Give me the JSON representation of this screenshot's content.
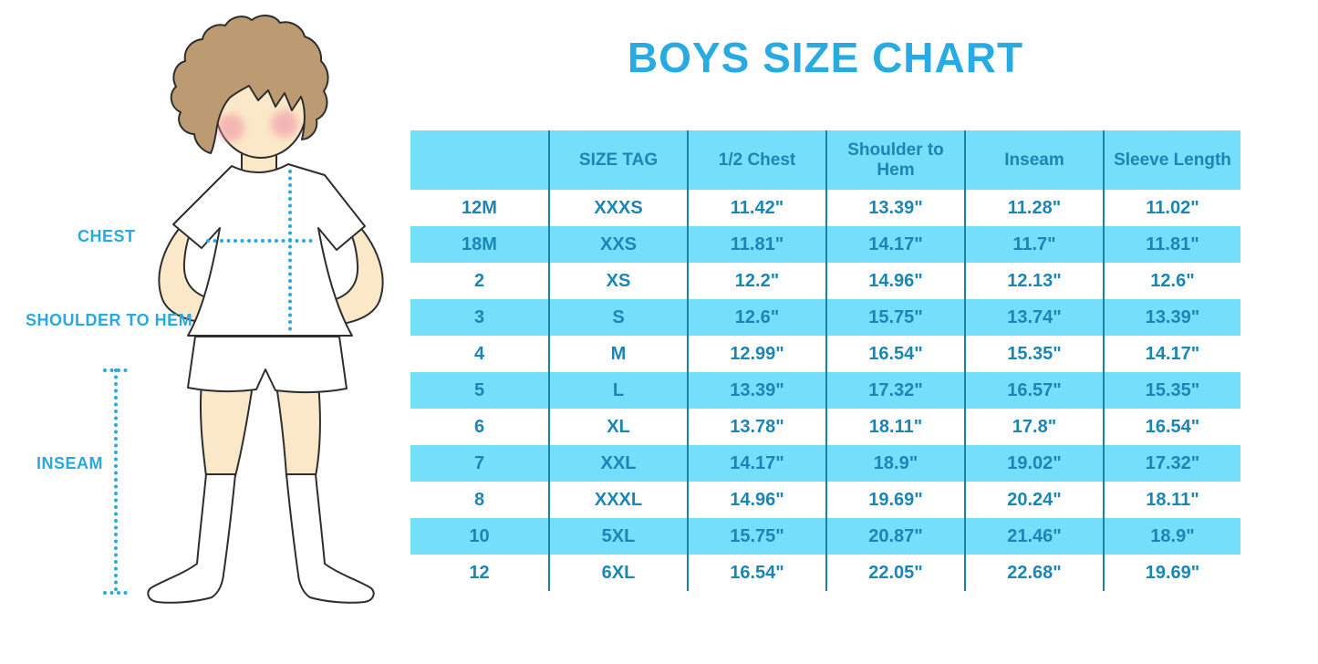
{
  "page": {
    "title": "BOYS SIZE CHART"
  },
  "figure": {
    "labels": {
      "chest": "CHEST",
      "shoulder_to_hem": "SHOULDER TO HEM",
      "inseam": "INSEAM"
    }
  },
  "colors": {
    "title_blue": "#29ABE2",
    "label_blue": "#29A9E0",
    "table_fill": "#74DFFB",
    "table_text": "#1B86B5",
    "table_border": "#1C7FA8",
    "skin": "#FBE8C8",
    "hair": "#BC9B72",
    "cheek": "#EE8FA6",
    "outline": "#2E2E2E"
  },
  "chart_data": {
    "type": "table",
    "title": "BOYS SIZE CHART",
    "columns": [
      "",
      "SIZE TAG",
      "1/2 Chest",
      "Shoulder to Hem",
      "Inseam",
      "Sleeve Length"
    ],
    "rows": [
      [
        "12M",
        "XXXS",
        "11.42\"",
        "13.39\"",
        "11.28\"",
        "11.02\""
      ],
      [
        "18M",
        "XXS",
        "11.81\"",
        "14.17\"",
        "11.7\"",
        "11.81\""
      ],
      [
        "2",
        "XS",
        "12.2\"",
        "14.96\"",
        "12.13\"",
        "12.6\""
      ],
      [
        "3",
        "S",
        "12.6\"",
        "15.75\"",
        "13.74\"",
        "13.39\""
      ],
      [
        "4",
        "M",
        "12.99\"",
        "16.54\"",
        "15.35\"",
        "14.17\""
      ],
      [
        "5",
        "L",
        "13.39\"",
        "17.32\"",
        "16.57\"",
        "15.35\""
      ],
      [
        "6",
        "XL",
        "13.78\"",
        "18.11\"",
        "17.8\"",
        "16.54\""
      ],
      [
        "7",
        "XXL",
        "14.17\"",
        "18.9\"",
        "19.02\"",
        "17.32\""
      ],
      [
        "8",
        "XXXL",
        "14.96\"",
        "19.69\"",
        "20.24\"",
        "18.11\""
      ],
      [
        "10",
        "5XL",
        "15.75\"",
        "20.87\"",
        "21.46\"",
        "18.9\""
      ],
      [
        "12",
        "6XL",
        "16.54\"",
        "22.05\"",
        "22.68\"",
        "19.69\""
      ]
    ]
  }
}
